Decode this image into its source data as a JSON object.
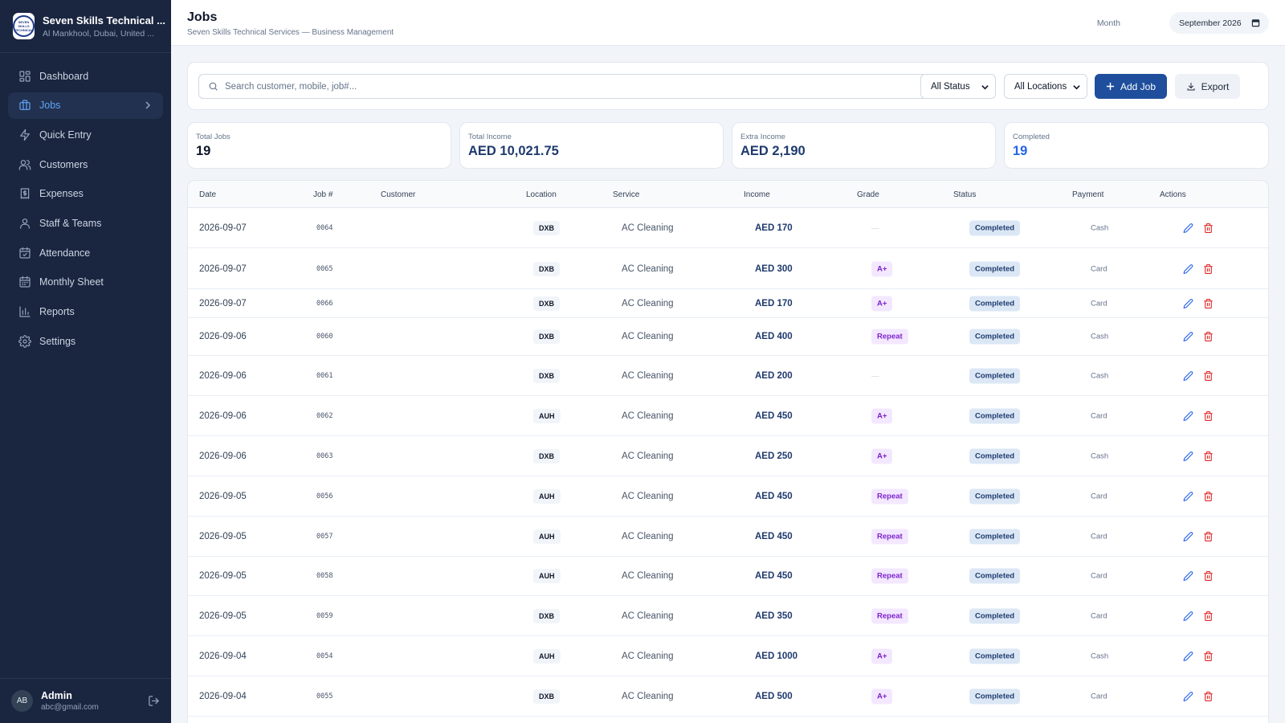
{
  "sidebar": {
    "brand_name": "Seven Skills Technical ...",
    "brand_location": "Al Mankhool, Dubai, United ...",
    "logo_text": "SEVEN SKILLS TECHNICAL",
    "items": [
      {
        "label": "Dashboard",
        "icon": "dashboard-icon"
      },
      {
        "label": "Jobs",
        "icon": "briefcase-icon",
        "active": true
      },
      {
        "label": "Quick Entry",
        "icon": "lightning-icon"
      },
      {
        "label": "Customers",
        "icon": "users-icon"
      },
      {
        "label": "Expenses",
        "icon": "receipt-icon"
      },
      {
        "label": "Staff & Teams",
        "icon": "staff-icon"
      },
      {
        "label": "Attendance",
        "icon": "calendar-check-icon"
      },
      {
        "label": "Monthly Sheet",
        "icon": "calendar-icon"
      },
      {
        "label": "Reports",
        "icon": "bar-chart-icon"
      },
      {
        "label": "Settings",
        "icon": "gear-icon"
      }
    ],
    "user": {
      "initials": "AB",
      "name": "Admin",
      "email": "abc@gmail.com"
    }
  },
  "header": {
    "title": "Jobs",
    "subtitle": "Seven Skills Technical Services — Business Management",
    "month_label": "Month",
    "month_value": "September 2026"
  },
  "filters": {
    "search_placeholder": "Search customer, mobile, job#...",
    "status_value": "All Status",
    "location_value": "All Locations",
    "add_label": "Add Job",
    "export_label": "Export"
  },
  "stats": [
    {
      "label": "Total Jobs",
      "value": "19"
    },
    {
      "label": "Total Income",
      "value": "AED 10,021.75"
    },
    {
      "label": "Extra Income",
      "value": "AED 2,190"
    },
    {
      "label": "Completed",
      "value": "19"
    }
  ],
  "table": {
    "columns": [
      "Date",
      "Job #",
      "Customer",
      "Location",
      "Service",
      "Income",
      "Grade",
      "Status",
      "Payment",
      "Actions"
    ],
    "rows": [
      {
        "date": "2026-09-07",
        "job": "0064",
        "customer": "",
        "location": "DXB",
        "service": "AC Cleaning",
        "income": "AED 170",
        "grade": "—",
        "status": "Completed",
        "payment": "Cash"
      },
      {
        "date": "2026-09-07",
        "job": "0065",
        "customer": "",
        "location": "DXB",
        "service": "AC Cleaning",
        "income": "AED 300",
        "grade": "A+",
        "status": "Completed",
        "payment": "Card"
      },
      {
        "date": "2026-09-07",
        "job": "0066",
        "customer": "",
        "location": "DXB",
        "service": "AC Cleaning",
        "income": "AED 170",
        "grade": "A+",
        "status": "Completed",
        "payment": "Card"
      },
      {
        "date": "2026-09-06",
        "job": "0060",
        "customer": "",
        "location": "DXB",
        "service": "AC Cleaning",
        "income": "AED 400",
        "grade": "Repeat",
        "status": "Completed",
        "payment": "Cash"
      },
      {
        "date": "2026-09-06",
        "job": "0061",
        "customer": "",
        "location": "DXB",
        "service": "AC Cleaning",
        "income": "AED 200",
        "grade": "—",
        "status": "Completed",
        "payment": "Cash"
      },
      {
        "date": "2026-09-06",
        "job": "0062",
        "customer": "",
        "location": "AUH",
        "service": "AC Cleaning",
        "income": "AED 450",
        "grade": "A+",
        "status": "Completed",
        "payment": "Card"
      },
      {
        "date": "2026-09-06",
        "job": "0063",
        "customer": "",
        "location": "DXB",
        "service": "AC Cleaning",
        "income": "AED 250",
        "grade": "A+",
        "status": "Completed",
        "payment": "Cash"
      },
      {
        "date": "2026-09-05",
        "job": "0056",
        "customer": "",
        "location": "AUH",
        "service": "AC Cleaning",
        "income": "AED 450",
        "grade": "Repeat",
        "status": "Completed",
        "payment": "Card"
      },
      {
        "date": "2026-09-05",
        "job": "0057",
        "customer": "",
        "location": "AUH",
        "service": "AC Cleaning",
        "income": "AED 450",
        "grade": "Repeat",
        "status": "Completed",
        "payment": "Card"
      },
      {
        "date": "2026-09-05",
        "job": "0058",
        "customer": "",
        "location": "AUH",
        "service": "AC Cleaning",
        "income": "AED 450",
        "grade": "Repeat",
        "status": "Completed",
        "payment": "Card"
      },
      {
        "date": "2026-09-05",
        "job": "0059",
        "customer": "",
        "location": "DXB",
        "service": "AC Cleaning",
        "income": "AED 350",
        "grade": "Repeat",
        "status": "Completed",
        "payment": "Card"
      },
      {
        "date": "2026-09-04",
        "job": "0054",
        "customer": "",
        "location": "AUH",
        "service": "AC Cleaning",
        "income": "AED 1000",
        "grade": "A+",
        "status": "Completed",
        "payment": "Cash"
      },
      {
        "date": "2026-09-04",
        "job": "0055",
        "customer": "",
        "location": "DXB",
        "service": "AC Cleaning",
        "income": "AED 500",
        "grade": "A+",
        "status": "Completed",
        "payment": "Card"
      }
    ]
  },
  "colors": {
    "sidebar_bg": "#1a2540",
    "accent": "#1e4e9c",
    "active_nav": "#60a5fa",
    "delete": "#dc2626",
    "grade_text": "#7e22ce"
  }
}
